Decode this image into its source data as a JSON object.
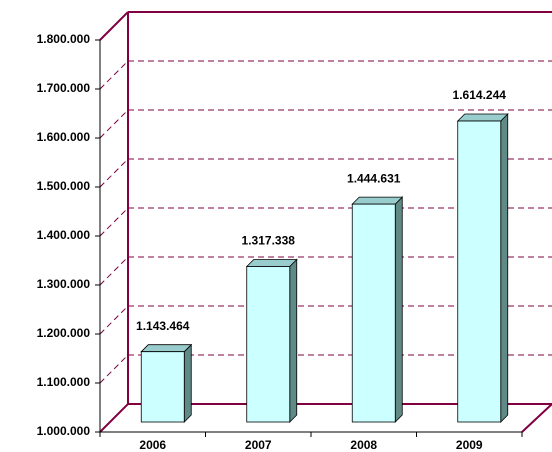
{
  "chart_data": {
    "type": "bar3d",
    "categories": [
      "2006",
      "2007",
      "2008",
      "2009"
    ],
    "values": [
      1143464,
      1317338,
      1444631,
      1614244
    ],
    "value_labels": [
      "1.143.464",
      "1.317.338",
      "1.444.631",
      "1.614.244"
    ],
    "color": "#ccffff",
    "ylim": [
      1000000,
      1800000
    ],
    "yticks": [
      {
        "value": 1000000,
        "label": "1.000.000"
      },
      {
        "value": 1100000,
        "label": "1.100.000"
      },
      {
        "value": 1200000,
        "label": "1.200.000"
      },
      {
        "value": 1300000,
        "label": "1.300.000"
      },
      {
        "value": 1400000,
        "label": "1.400.000"
      },
      {
        "value": 1500000,
        "label": "1.500.000"
      },
      {
        "value": 1600000,
        "label": "1.600.000"
      },
      {
        "value": 1700000,
        "label": "1.700.000"
      },
      {
        "value": 1800000,
        "label": "1.800.000"
      }
    ],
    "grid": true
  }
}
